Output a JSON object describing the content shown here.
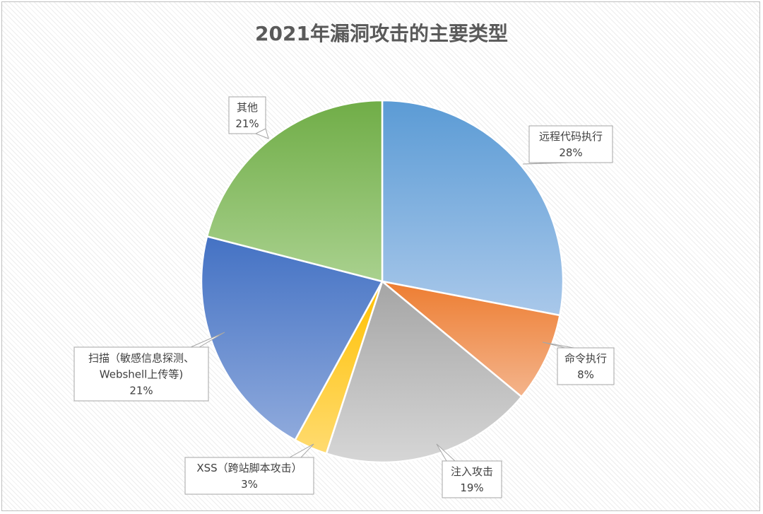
{
  "chart_data": {
    "type": "pie",
    "title": "2021年漏洞攻击的主要类型",
    "slices": [
      {
        "label": "远程代码执行",
        "value": 28,
        "value_label": "28%",
        "color_top": "#5b9bd5",
        "color_bottom": "#a9c8ea"
      },
      {
        "label": "命令执行",
        "value": 8,
        "value_label": "8%",
        "color_top": "#ed7d31",
        "color_bottom": "#f4b48c"
      },
      {
        "label": "注入攻击",
        "value": 19,
        "value_label": "19%",
        "color_top": "#a5a5a5",
        "color_bottom": "#d6d6d6"
      },
      {
        "label": "XSS（跨站脚本攻击）",
        "value": 3,
        "value_label": "3%",
        "color_top": "#ffc000",
        "color_bottom": "#ffdb70"
      },
      {
        "label": "扫描（敏感信息探测、Webshell上传等)",
        "label_lines": [
          "扫描（敏感信息探测、",
          "Webshell上传等)"
        ],
        "value": 21,
        "value_label": "21%",
        "color_top": "#4472c4",
        "color_bottom": "#8faadc"
      },
      {
        "label": "其他",
        "value": 21,
        "value_label": "21%",
        "color_top": "#70ad47",
        "color_bottom": "#a9d18e"
      }
    ],
    "legend": "none",
    "data_labels": "callouts"
  }
}
